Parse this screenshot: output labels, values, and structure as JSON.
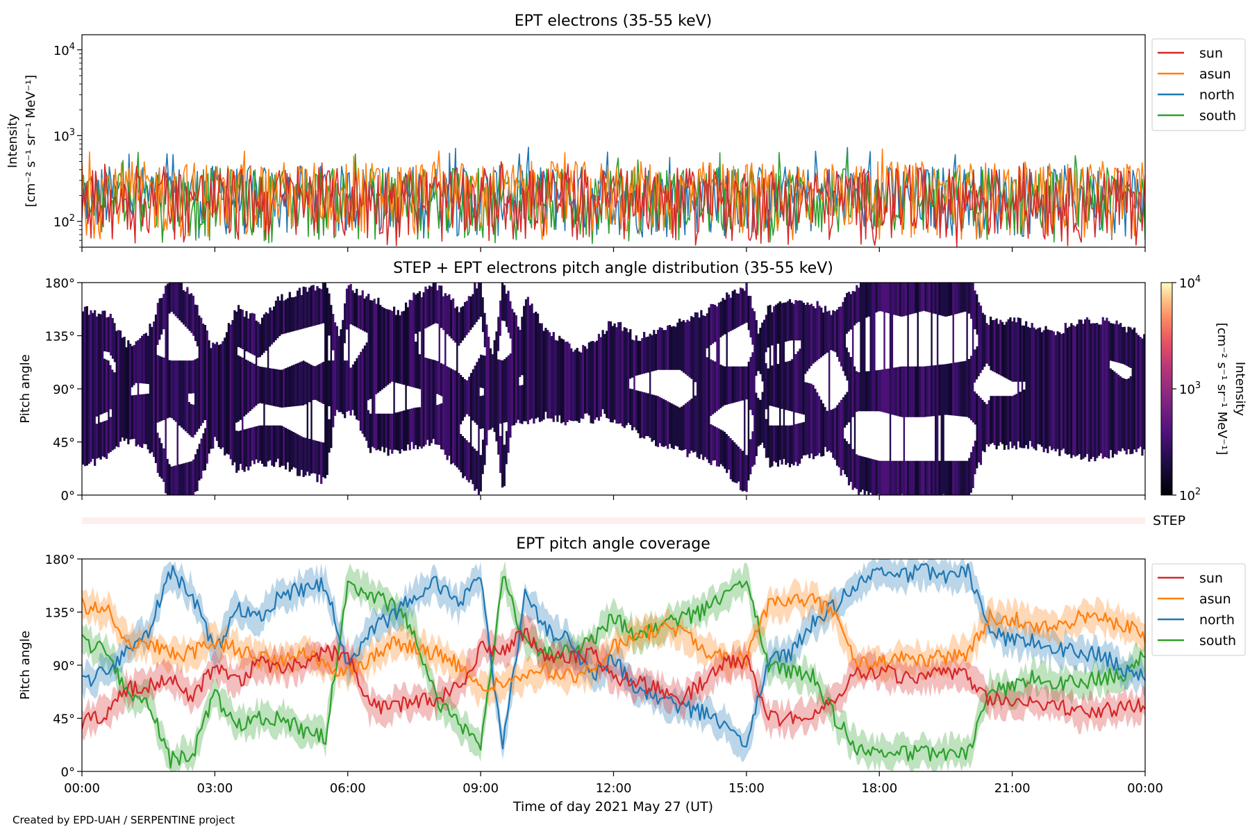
{
  "footer": "Created by EPD-UAH / SERPENTINE project",
  "colors": {
    "sun": "#d62728",
    "asun": "#ff7f0e",
    "north": "#1f77b4",
    "south": "#2ca02c",
    "step_bar": "#fdf0ec"
  },
  "chart_data": [
    {
      "type": "line",
      "title": "EPT electrons (35-55 keV)",
      "ylabel_line1": "Intensity",
      "ylabel_line2": "[cm⁻² s⁻¹ sr⁻¹ MeV⁻¹]",
      "yscale": "log",
      "ylim": [
        50,
        15000
      ],
      "yticks": [
        {
          "value": 100,
          "base": "10",
          "exp": "2"
        },
        {
          "value": 1000,
          "base": "10",
          "exp": "3"
        },
        {
          "value": 10000,
          "base": "10",
          "exp": "4"
        }
      ],
      "xlim_hours": [
        0,
        24
      ],
      "legend_position": "outside right, top",
      "series": [
        {
          "name": "sun",
          "color": "#d62728",
          "typical_range": [
            50,
            420
          ],
          "peak": 500
        },
        {
          "name": "asun",
          "color": "#ff7f0e",
          "typical_range": [
            60,
            500
          ],
          "peak": 720
        },
        {
          "name": "north",
          "color": "#1f77b4",
          "typical_range": [
            60,
            450
          ],
          "peak": 740
        },
        {
          "name": "south",
          "color": "#2ca02c",
          "typical_range": [
            55,
            420
          ],
          "peak": 680
        }
      ]
    },
    {
      "type": "heatmap",
      "title": "STEP + EPT electrons pitch angle distribution (35-55 keV)",
      "ylabel": "Pitch angle",
      "ylim": [
        0,
        180
      ],
      "yticks": [
        "0°",
        "45°",
        "90°",
        "135°",
        "180°"
      ],
      "colorbar": {
        "label_line1": "Intensity",
        "label_line2": "[cm⁻² s⁻¹ sr⁻¹ MeV⁻¹]",
        "scale": "log",
        "range": [
          100,
          10000
        ],
        "ticks": [
          {
            "base": "10",
            "exp": "2"
          },
          {
            "base": "10",
            "exp": "3"
          },
          {
            "base": "10",
            "exp": "4"
          }
        ],
        "colormap": "inferno"
      },
      "note": "Intensity mostly 100-400, shown in dark purple; white gaps where no data"
    },
    {
      "type": "bar",
      "label": "STEP",
      "note": "thin empty STEP pitch-angle strip"
    },
    {
      "type": "line",
      "title": "EPT pitch angle coverage",
      "ylabel": "Pitch angle",
      "xlabel": "Time of day 2021 May 27 (UT)",
      "ylim": [
        0,
        180
      ],
      "yticks": [
        "0°",
        "45°",
        "90°",
        "135°",
        "180°"
      ],
      "xticks": [
        "00:00",
        "03:00",
        "06:00",
        "09:00",
        "12:00",
        "15:00",
        "18:00",
        "21:00",
        "00:00"
      ],
      "xlim_hours": [
        0,
        24
      ],
      "legend_position": "outside right, top",
      "shaded_band_halfwidth_deg": 12,
      "series": [
        {
          "name": "sun",
          "color": "#d62728",
          "x": [
            0,
            0.6,
            1,
            1.5,
            2,
            2.5,
            3,
            3.5,
            4,
            4.5,
            5,
            5.5,
            6,
            6.5,
            7,
            7.5,
            8,
            8.5,
            9,
            9.5,
            10,
            10.5,
            11,
            11.5,
            12,
            12.5,
            13,
            13.5,
            14,
            14.5,
            15,
            15.5,
            16,
            16.5,
            17,
            17.5,
            18,
            18.5,
            19,
            19.5,
            20,
            20.5,
            21,
            21.5,
            22,
            22.5,
            23,
            23.5,
            24
          ],
          "y": [
            42,
            50,
            70,
            72,
            80,
            62,
            90,
            75,
            92,
            88,
            90,
            100,
            100,
            55,
            55,
            60,
            62,
            70,
            105,
            100,
            118,
            95,
            95,
            100,
            80,
            75,
            70,
            60,
            75,
            90,
            95,
            45,
            45,
            50,
            60,
            85,
            85,
            80,
            80,
            82,
            80,
            60,
            60,
            60,
            55,
            50,
            50,
            55,
            55
          ]
        },
        {
          "name": "asun",
          "color": "#ff7f0e",
          "x": [
            0,
            0.6,
            1,
            1.5,
            2,
            2.5,
            3,
            3.5,
            4,
            4.5,
            5,
            5.5,
            6,
            6.5,
            7,
            7.5,
            8,
            8.5,
            9,
            9.5,
            10,
            10.5,
            11,
            11.5,
            12,
            12.5,
            13,
            13.5,
            14,
            14.5,
            15,
            15.5,
            16,
            16.5,
            17,
            17.5,
            18,
            18.5,
            19,
            19.5,
            20,
            20.5,
            21,
            21.5,
            22,
            22.5,
            23,
            23.5,
            24
          ],
          "y": [
            140,
            135,
            110,
            108,
            100,
            100,
            110,
            105,
            95,
            92,
            100,
            90,
            85,
            95,
            110,
            105,
            100,
            90,
            70,
            75,
            80,
            85,
            80,
            85,
            105,
            115,
            120,
            120,
            105,
            95,
            95,
            140,
            145,
            145,
            135,
            90,
            92,
            95,
            95,
            97,
            100,
            130,
            130,
            125,
            120,
            130,
            130,
            125,
            115
          ]
        },
        {
          "name": "north",
          "color": "#1f77b4",
          "x": [
            0,
            0.6,
            1,
            1.5,
            2,
            2.5,
            3,
            3.5,
            4,
            4.5,
            5,
            5.5,
            6,
            6.5,
            7,
            7.5,
            8,
            8.5,
            9,
            9.5,
            10,
            10.5,
            11,
            11.5,
            12,
            12.5,
            13,
            13.5,
            14,
            14.5,
            15,
            15.5,
            16,
            16.5,
            17,
            17.5,
            18,
            18.5,
            19,
            19.5,
            20,
            20.5,
            21,
            21.5,
            22,
            22.5,
            23,
            23.5,
            24
          ],
          "y": [
            75,
            85,
            100,
            120,
            170,
            150,
            100,
            140,
            130,
            150,
            155,
            160,
            90,
            120,
            130,
            150,
            160,
            140,
            165,
            20,
            150,
            120,
            110,
            80,
            95,
            70,
            60,
            55,
            50,
            40,
            20,
            95,
            100,
            125,
            140,
            160,
            170,
            165,
            170,
            165,
            170,
            120,
            110,
            110,
            105,
            100,
            100,
            85,
            80
          ]
        },
        {
          "name": "south",
          "color": "#2ca02c",
          "x": [
            0,
            0.6,
            1,
            1.5,
            2,
            2.5,
            3,
            3.5,
            4,
            4.5,
            5,
            5.5,
            6,
            6.5,
            7,
            7.5,
            8,
            8.5,
            9,
            9.5,
            10,
            10.5,
            11,
            11.5,
            12,
            12.5,
            13,
            13.5,
            14,
            14.5,
            15,
            15.5,
            16,
            16.5,
            17,
            17.5,
            18,
            18.5,
            19,
            19.5,
            20,
            20.5,
            21,
            21.5,
            22,
            22.5,
            23,
            23.5,
            24
          ],
          "y": [
            110,
            100,
            65,
            60,
            10,
            15,
            65,
            40,
            45,
            45,
            35,
            30,
            160,
            150,
            140,
            120,
            60,
            40,
            20,
            165,
            110,
            100,
            100,
            110,
            130,
            115,
            120,
            130,
            135,
            150,
            160,
            90,
            85,
            80,
            45,
            20,
            15,
            15,
            15,
            15,
            15,
            70,
            70,
            80,
            75,
            75,
            80,
            80,
            100
          ]
        }
      ]
    }
  ]
}
